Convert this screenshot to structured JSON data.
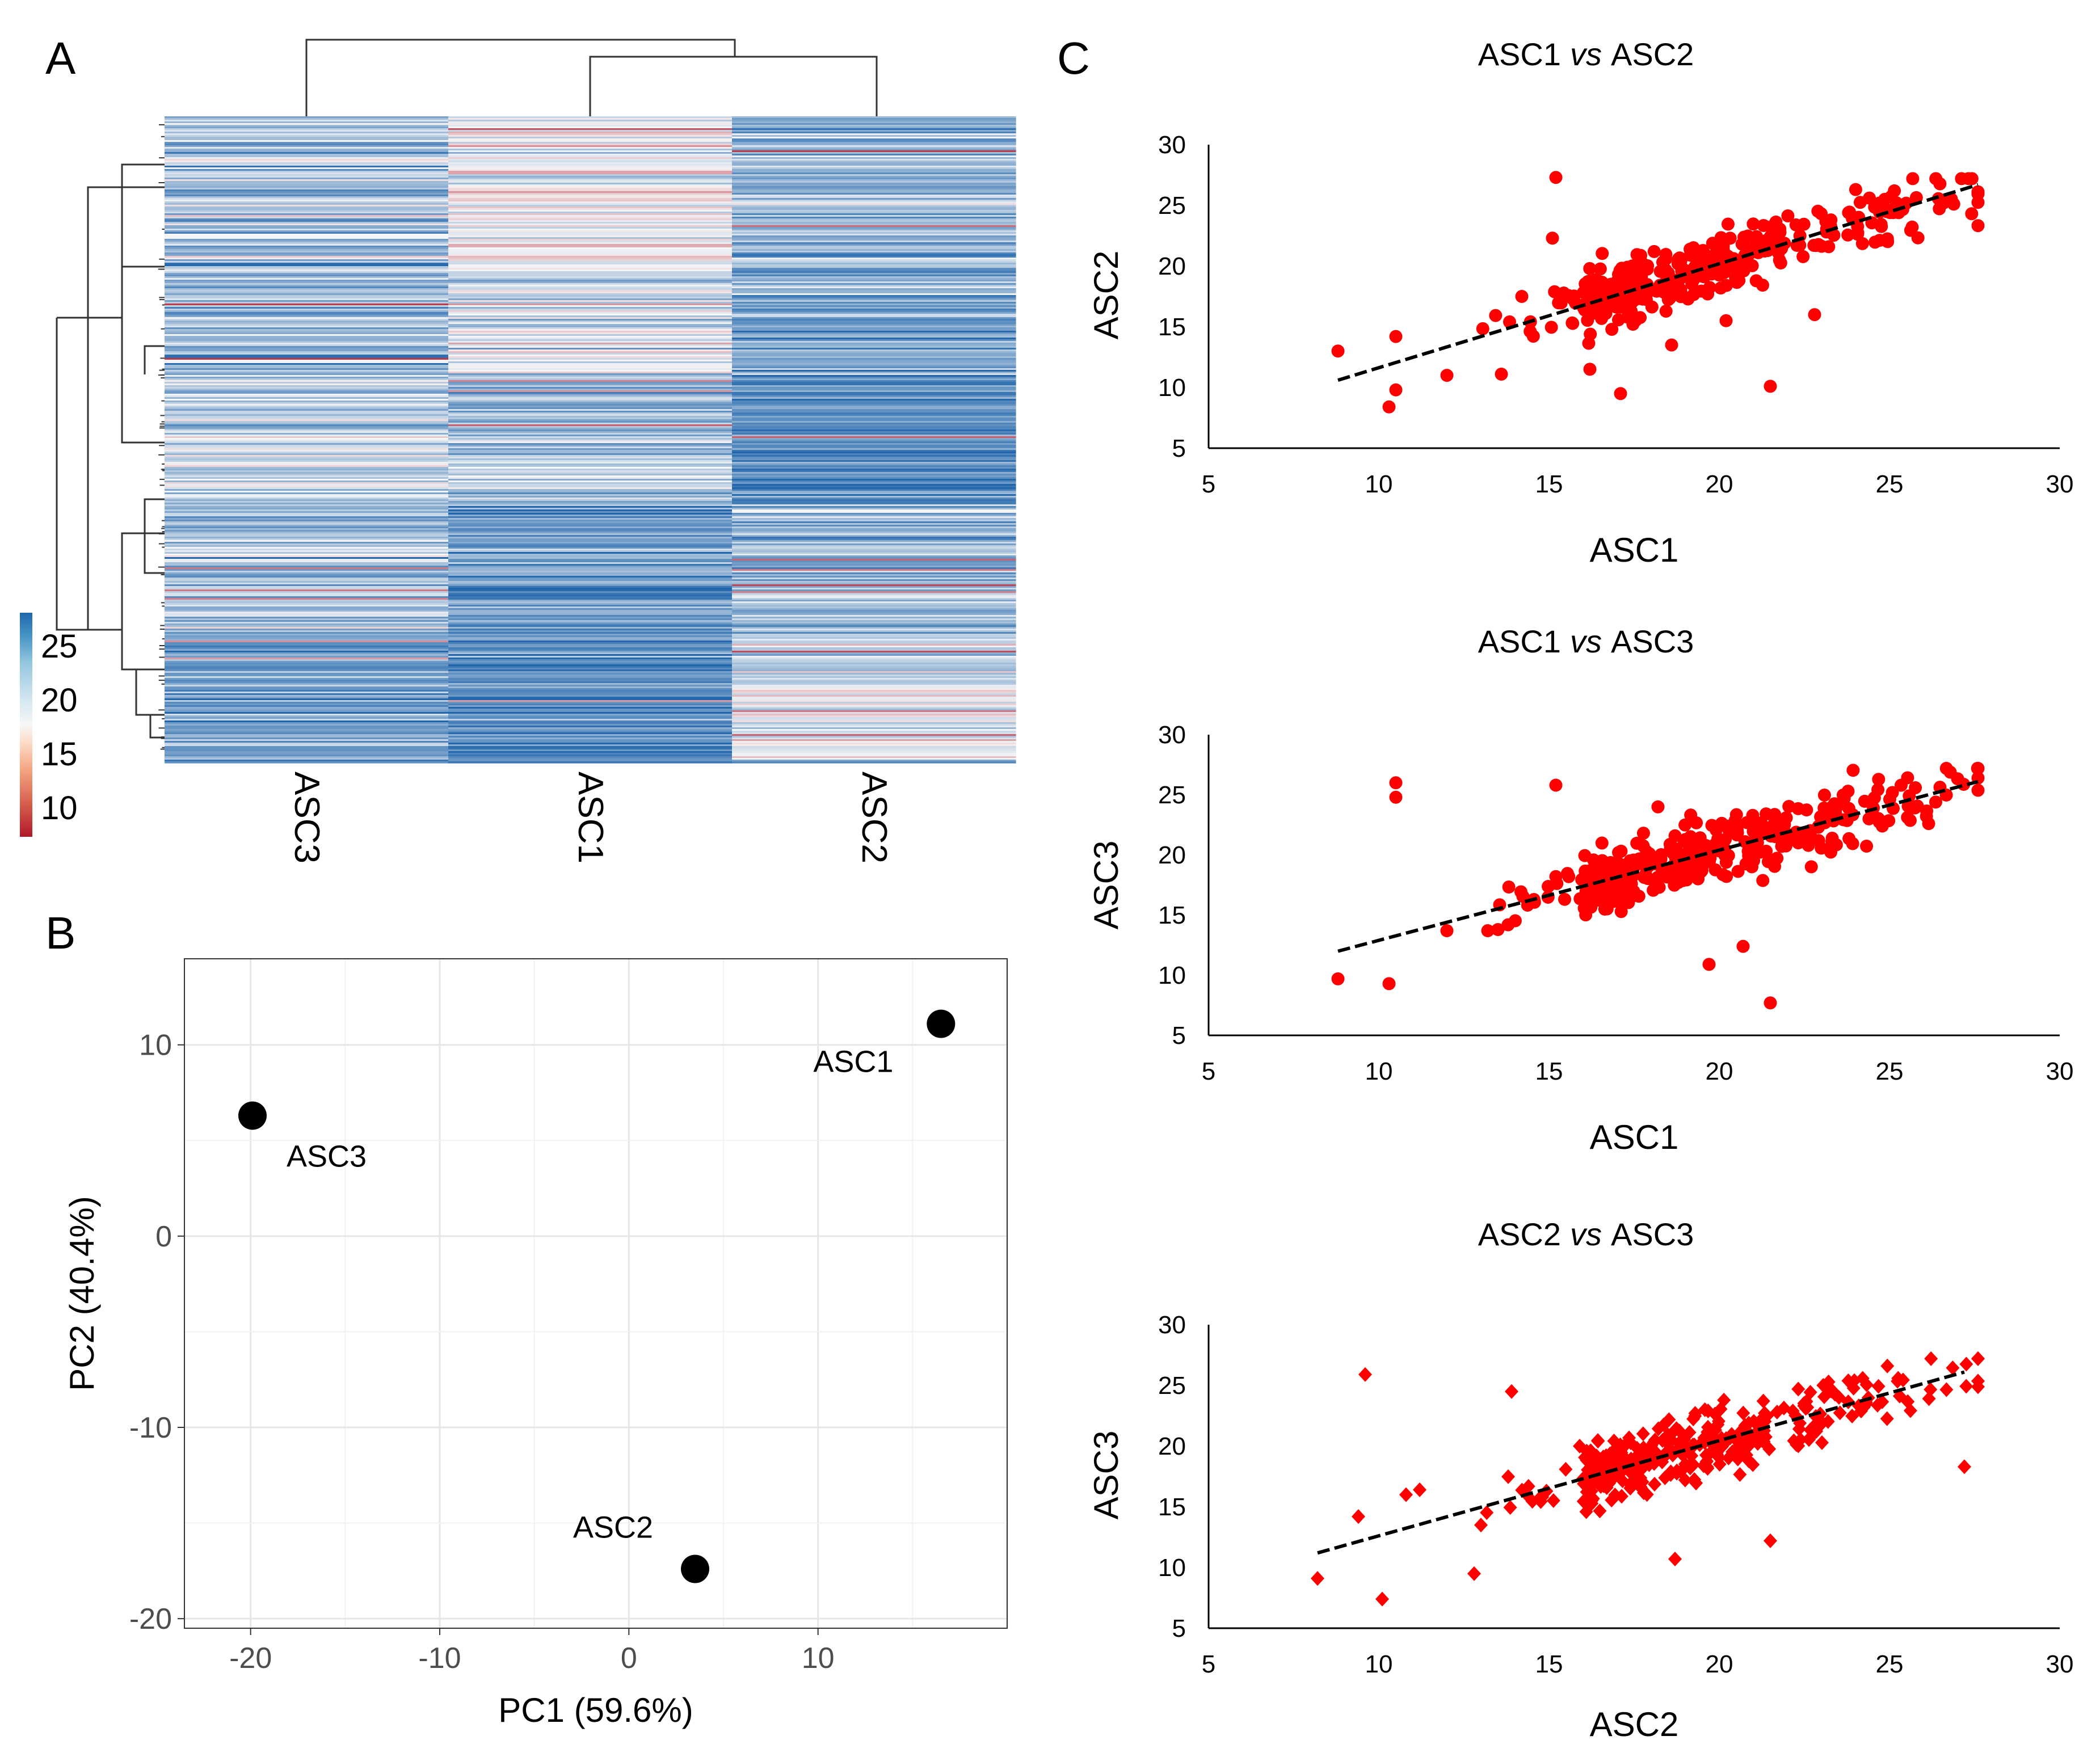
{
  "panels": {
    "a": "A",
    "b": "B",
    "c": "C"
  },
  "heatmap": {
    "columns": [
      "ASC3",
      "ASC1",
      "ASC2"
    ],
    "colorbar_ticks": [
      "25",
      "20",
      "15",
      "10"
    ],
    "colors": {
      "low": "#b2182b",
      "mid": "#f7f7f7",
      "high": "#2166ac"
    }
  },
  "chart_data": [
    {
      "type": "heatmap",
      "panel": "A",
      "columns": [
        "ASC3",
        "ASC1",
        "ASC2"
      ],
      "color_scale": {
        "min": 8,
        "max": 28,
        "ticks": [
          25,
          20,
          15,
          10
        ]
      },
      "dendrogram_columns": "(ASC3,(ASC1,ASC2))",
      "rows_approx": 380
    },
    {
      "type": "scatter",
      "panel": "B",
      "xlabel": "PC1 (59.6%)",
      "ylabel": "PC2 (40.4%)",
      "xlim": [
        -23.5,
        20
      ],
      "ylim": [
        -20.5,
        14.5
      ],
      "xticks": [
        -20,
        -10,
        0,
        10
      ],
      "yticks": [
        10,
        0,
        -10,
        -20
      ],
      "points": [
        {
          "label": "ASC1",
          "x": 16.5,
          "y": 11.1
        },
        {
          "label": "ASC3",
          "x": -19.9,
          "y": 6.3
        },
        {
          "label": "ASC2",
          "x": 3.5,
          "y": -17.4
        }
      ]
    },
    {
      "type": "scatter",
      "panel": "C",
      "title_a": "ASC1",
      "title_vs": "vs",
      "title_b": "ASC2",
      "xlabel": "ASC1",
      "ylabel": "ASC2",
      "xlim": [
        5,
        30
      ],
      "ylim": [
        5,
        30
      ],
      "ticks": [
        5,
        10,
        15,
        20,
        25,
        30
      ],
      "marker": "circle",
      "trendline": {
        "x0": 8.8,
        "y0": 10.6,
        "x1": 27.6,
        "y1": 26.7
      },
      "outliers": [
        [
          8.8,
          13.0
        ],
        [
          10.3,
          8.4
        ],
        [
          10.5,
          14.2
        ],
        [
          10.5,
          9.8
        ],
        [
          12.0,
          11.0
        ],
        [
          13.6,
          11.1
        ],
        [
          15.2,
          27.3
        ],
        [
          15.1,
          22.3
        ],
        [
          16.2,
          11.5
        ],
        [
          17.1,
          9.5
        ],
        [
          18.6,
          13.5
        ],
        [
          20.2,
          15.5
        ],
        [
          21.5,
          10.1
        ],
        [
          22.8,
          16.0
        ],
        [
          14.2,
          17.5
        ]
      ]
    },
    {
      "type": "scatter",
      "panel": "C",
      "title_a": "ASC1",
      "title_vs": "vs",
      "title_b": "ASC3",
      "xlabel": "ASC1",
      "ylabel": "ASC3",
      "xlim": [
        5,
        30
      ],
      "ylim": [
        5,
        30
      ],
      "ticks": [
        5,
        10,
        15,
        20,
        25,
        30
      ],
      "marker": "circle",
      "trendline": {
        "x0": 8.8,
        "y0": 12.0,
        "x1": 27.6,
        "y1": 26.1
      },
      "outliers": [
        [
          8.8,
          9.7
        ],
        [
          10.3,
          9.3
        ],
        [
          10.5,
          26.0
        ],
        [
          10.5,
          24.8
        ],
        [
          12.0,
          13.7
        ],
        [
          13.2,
          13.7
        ],
        [
          13.5,
          13.8
        ],
        [
          15.2,
          25.8
        ],
        [
          15.2,
          18.2
        ],
        [
          18.2,
          24.0
        ],
        [
          19.7,
          10.9
        ],
        [
          20.7,
          12.4
        ],
        [
          21.5,
          7.7
        ]
      ]
    },
    {
      "type": "scatter",
      "panel": "C",
      "title_a": "ASC2",
      "title_vs": "vs",
      "title_b": "ASC3",
      "xlabel": "ASC2",
      "ylabel": "ASC3",
      "xlim": [
        5,
        30
      ],
      "ylim": [
        5,
        30
      ],
      "ticks": [
        5,
        10,
        15,
        20,
        25,
        30
      ],
      "marker": "diamond",
      "trendline": {
        "x0": 8.2,
        "y0": 11.2,
        "x1": 27.2,
        "y1": 26.1
      },
      "outliers": [
        [
          8.2,
          9.1
        ],
        [
          9.6,
          25.9
        ],
        [
          10.1,
          7.4
        ],
        [
          9.4,
          14.2
        ],
        [
          10.8,
          16.0
        ],
        [
          11.2,
          16.4
        ],
        [
          12.8,
          9.5
        ],
        [
          13.9,
          24.5
        ],
        [
          13.0,
          13.5
        ],
        [
          18.7,
          10.7
        ],
        [
          21.5,
          12.2
        ],
        [
          27.2,
          18.3
        ],
        [
          15.9,
          20.0
        ]
      ]
    }
  ]
}
